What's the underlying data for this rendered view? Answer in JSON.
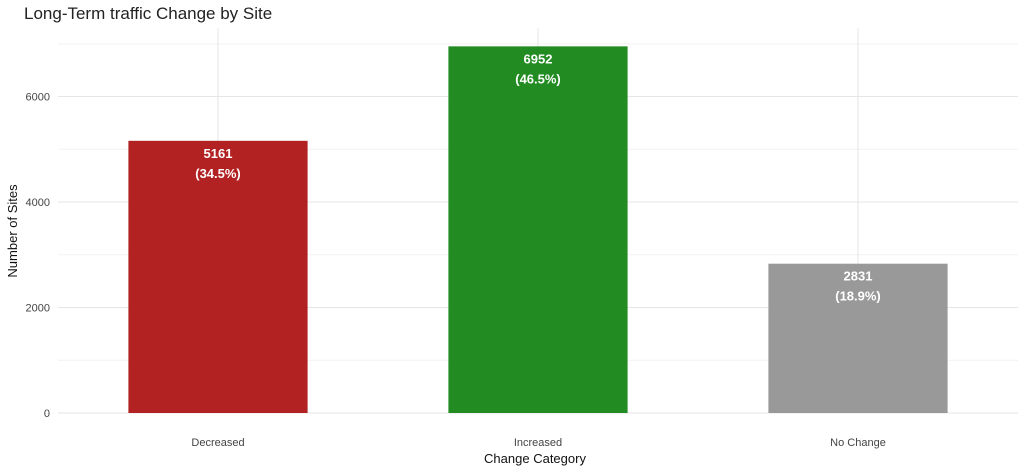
{
  "chart_data": {
    "type": "bar",
    "title": "Long-Term traffic Change by Site",
    "xlabel": "Change Category",
    "ylabel": "Number of Sites",
    "categories": [
      "Decreased",
      "Increased",
      "No Change"
    ],
    "values": [
      5161,
      6952,
      2831
    ],
    "value_labels": [
      "5161",
      "6952",
      "2831"
    ],
    "percent_labels": [
      "(34.5%)",
      "(46.5%)",
      "(18.9%)"
    ],
    "colors": [
      "#b22222",
      "#228b22",
      "#999999"
    ],
    "ylim": [
      0,
      7300
    ],
    "yticks": [
      0,
      2000,
      4000,
      6000
    ],
    "ytick_labels": [
      "0",
      "2000",
      "4000",
      "6000"
    ],
    "grid": true,
    "legend": "none"
  }
}
